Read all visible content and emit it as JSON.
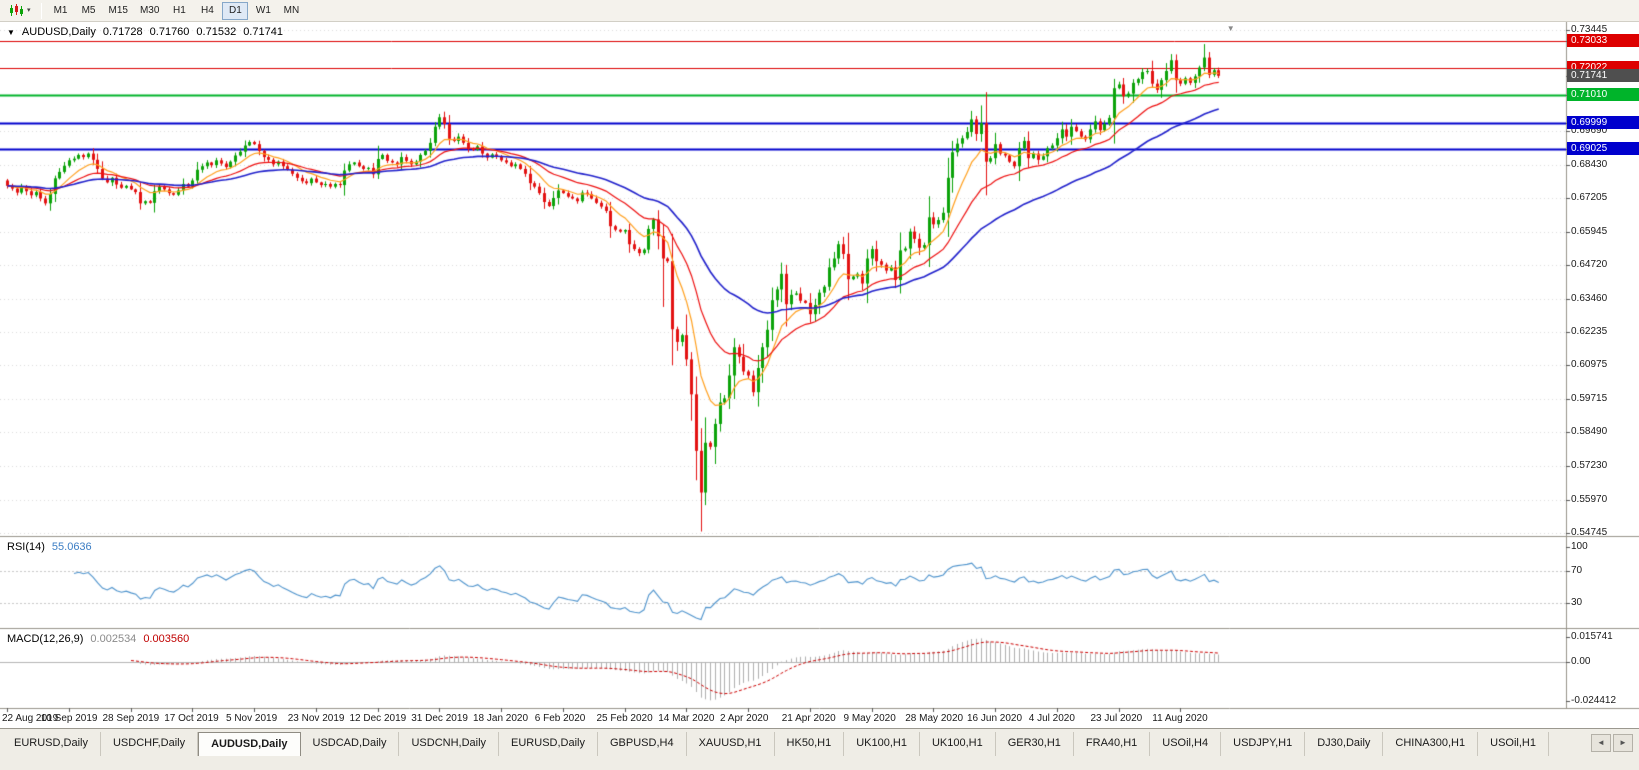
{
  "toolbar": {
    "dropdown_caret": "▾",
    "timeframes": [
      "M1",
      "M5",
      "M15",
      "M30",
      "H1",
      "H4",
      "D1",
      "W1",
      "MN"
    ],
    "active_timeframe": "D1"
  },
  "chart": {
    "expander_icon": "▼",
    "symbol_title": "AUDUSD,Daily",
    "ohlc": {
      "open": "0.71728",
      "high": "0.71760",
      "low": "0.71532",
      "close": "0.71741"
    },
    "shift_marker": "▼",
    "y_axis": {
      "ticks": [
        "0.73445",
        "0.69690",
        "0.68430",
        "0.67205",
        "0.65945",
        "0.64720",
        "0.63460",
        "0.62235",
        "0.60975",
        "0.59715",
        "0.58490",
        "0.57230",
        "0.55970",
        "0.54745"
      ]
    },
    "price_lines": [
      {
        "value": "0.73033",
        "price": 0.73033,
        "color": "#dd0000",
        "width": 1
      },
      {
        "value": "0.72022",
        "price": 0.72022,
        "color": "#dd0000",
        "width": 1
      },
      {
        "value": "0.71010",
        "price": 0.7101,
        "color": "#00b42a",
        "width": 2
      },
      {
        "value": "0.69999",
        "price": 0.69999,
        "color": "#0000cd",
        "width": 2
      },
      {
        "value": "0.69025",
        "price": 0.69025,
        "color": "#0000cd",
        "width": 2
      }
    ],
    "current_price": {
      "value": "0.71741",
      "price": 0.71741,
      "badge_color": "#4f4f4f"
    },
    "x_axis": {
      "labels": [
        {
          "text": "22 Aug 2019",
          "bar": 0
        },
        {
          "text": "10 Sep 2019",
          "bar": 13
        },
        {
          "text": "28 Sep 2019",
          "bar": 26
        },
        {
          "text": "17 Oct 2019",
          "bar": 39
        },
        {
          "text": "5 Nov 2019",
          "bar": 52
        },
        {
          "text": "23 Nov 2019",
          "bar": 65
        },
        {
          "text": "12 Dec 2019",
          "bar": 78
        },
        {
          "text": "31 Dec 2019",
          "bar": 91
        },
        {
          "text": "18 Jan 2020",
          "bar": 104
        },
        {
          "text": "6 Feb 2020",
          "bar": 117
        },
        {
          "text": "25 Feb 2020",
          "bar": 130
        },
        {
          "text": "14 Mar 2020",
          "bar": 143
        },
        {
          "text": "2 Apr 2020",
          "bar": 156
        },
        {
          "text": "21 Apr 2020",
          "bar": 169
        },
        {
          "text": "9 May 2020",
          "bar": 182
        },
        {
          "text": "28 May 2020",
          "bar": 195
        },
        {
          "text": "16 Jun 2020",
          "bar": 208
        },
        {
          "text": "4 Jul 2020",
          "bar": 221
        },
        {
          "text": "23 Jul 2020",
          "bar": 234
        },
        {
          "text": "11 Aug 2020",
          "bar": 247
        }
      ]
    }
  },
  "rsi_panel": {
    "name": "RSI(14)",
    "period": 14,
    "value": "55.0636",
    "line_color": "#4f94cd",
    "levels": [
      "100",
      "70",
      "30"
    ],
    "level_values": [
      100,
      70,
      30
    ]
  },
  "macd_panel": {
    "name": "MACD(12,26,9)",
    "fast": 12,
    "slow": 26,
    "signal": 9,
    "value_main": "0.002534",
    "value_signal": "0.003560",
    "hist_color": "#b0b0b0",
    "signal_color": "#cc0000",
    "scale_labels": [
      {
        "text": "0.015741",
        "v": 0.015741
      },
      {
        "text": "0.00",
        "v": 0
      },
      {
        "text": "-0.024412",
        "v": -0.024412
      }
    ]
  },
  "chart_data": {
    "type": "candlestick",
    "symbol": "AUDUSD",
    "period": "Daily",
    "up_color": "#0ca30a",
    "down_color": "#e31212",
    "price_range": {
      "top": 0.73445,
      "bottom": 0.54745
    },
    "first_open": 0.6785,
    "closes": [
      0.6765,
      0.6755,
      0.674,
      0.6762,
      0.6745,
      0.673,
      0.6742,
      0.6718,
      0.67,
      0.6735,
      0.6793,
      0.6817,
      0.684,
      0.686,
      0.6866,
      0.688,
      0.6872,
      0.6885,
      0.6862,
      0.6828,
      0.6792,
      0.6778,
      0.6795,
      0.677,
      0.6758,
      0.6765,
      0.6752,
      0.6742,
      0.67,
      0.6708,
      0.6702,
      0.6745,
      0.6762,
      0.6752,
      0.6738,
      0.6732,
      0.6748,
      0.6772,
      0.6762,
      0.6785,
      0.6825,
      0.6838,
      0.6852,
      0.6842,
      0.686,
      0.6848,
      0.6835,
      0.6855,
      0.6878,
      0.6892,
      0.6915,
      0.6928,
      0.692,
      0.6895,
      0.6872,
      0.6862,
      0.6845,
      0.6855,
      0.6838,
      0.6825,
      0.681,
      0.6795,
      0.6782,
      0.6775,
      0.6792,
      0.6778,
      0.6768,
      0.6772,
      0.6762,
      0.6772,
      0.6768,
      0.6822,
      0.6845,
      0.6852,
      0.6838,
      0.6828,
      0.6832,
      0.6808,
      0.6865,
      0.688,
      0.6858,
      0.6852,
      0.6845,
      0.6872,
      0.6858,
      0.6845,
      0.6855,
      0.688,
      0.6895,
      0.6925,
      0.6985,
      0.702,
      0.6995,
      0.694,
      0.6932,
      0.6948,
      0.6925,
      0.6902,
      0.6898,
      0.6912,
      0.6885,
      0.687,
      0.6882,
      0.6875,
      0.686,
      0.6852,
      0.6838,
      0.6845,
      0.6828,
      0.681,
      0.6775,
      0.6762,
      0.6738,
      0.6705,
      0.669,
      0.672,
      0.6748,
      0.6738,
      0.6725,
      0.6718,
      0.6708,
      0.674,
      0.6735,
      0.6718,
      0.6702,
      0.6688,
      0.6672,
      0.6615,
      0.6602,
      0.6595,
      0.6601,
      0.6548,
      0.653,
      0.6515,
      0.6528,
      0.6605,
      0.664,
      0.6578,
      0.6495,
      0.6485,
      0.6232,
      0.6185,
      0.621,
      0.612,
      0.599,
      0.578,
      0.5625,
      0.581,
      0.5795,
      0.588,
      0.596,
      0.5975,
      0.606,
      0.6165,
      0.613,
      0.6075,
      0.606,
      0.5998,
      0.6088,
      0.6165,
      0.623,
      0.634,
      0.638,
      0.6438,
      0.6325,
      0.636,
      0.6365,
      0.6338,
      0.633,
      0.6288,
      0.6322,
      0.6368,
      0.639,
      0.6462,
      0.6495,
      0.6548,
      0.6512,
      0.6418,
      0.6428,
      0.6438,
      0.6402,
      0.6495,
      0.653,
      0.6485,
      0.6472,
      0.645,
      0.6462,
      0.6415,
      0.6525,
      0.6532,
      0.6595,
      0.6568,
      0.6535,
      0.6545,
      0.6648,
      0.6622,
      0.6638,
      0.6665,
      0.6795,
      0.689,
      0.6922,
      0.6942,
      0.6965,
      0.7012,
      0.6958,
      0.6998,
      0.6855,
      0.6868,
      0.692,
      0.6885,
      0.6878,
      0.6855,
      0.6838,
      0.6905,
      0.6932,
      0.6868,
      0.6885,
      0.6862,
      0.6875,
      0.6905,
      0.6915,
      0.6942,
      0.6975,
      0.6948,
      0.6985,
      0.6968,
      0.6948,
      0.6938,
      0.6975,
      0.7005,
      0.6972,
      0.6995,
      0.7018,
      0.7128,
      0.7142,
      0.7098,
      0.7108,
      0.7148,
      0.7162,
      0.7188,
      0.7192,
      0.7145,
      0.7122,
      0.7158,
      0.7192,
      0.7232,
      0.7158,
      0.7145,
      0.7165,
      0.7148,
      0.7172,
      0.7205,
      0.7242,
      0.7178,
      0.7195,
      0.71741
    ],
    "wick_overrides": {
      "91": {
        "high": 0.7032
      },
      "138": {
        "low": 0.6315
      },
      "146": {
        "low": 0.548
      },
      "205": {
        "high": 0.7064
      },
      "252": {
        "high": 0.7292
      }
    },
    "moving_averages": [
      {
        "period": 9,
        "type": "ema",
        "color": "#ffa01e"
      },
      {
        "period": 21,
        "type": "ema",
        "color": "#ee1111"
      },
      {
        "period": 45,
        "type": "ema",
        "color": "#2222cc"
      }
    ]
  },
  "tabs": {
    "items": [
      "EURUSD,Daily",
      "USDCHF,Daily",
      "AUDUSD,Daily",
      "USDCAD,Daily",
      "USDCNH,Daily",
      "EURUSD,Daily",
      "GBPUSD,H4",
      "XAUUSD,H1",
      "HK50,H1",
      "UK100,H1",
      "UK100,H1",
      "GER30,H1",
      "FRA40,H1",
      "USOil,H4",
      "USDJPY,H1",
      "DJ30,Daily",
      "CHINA300,H1",
      "USOil,H1"
    ],
    "active_index": 2,
    "scroll_left_icon": "◄",
    "scroll_right_icon": "►"
  }
}
